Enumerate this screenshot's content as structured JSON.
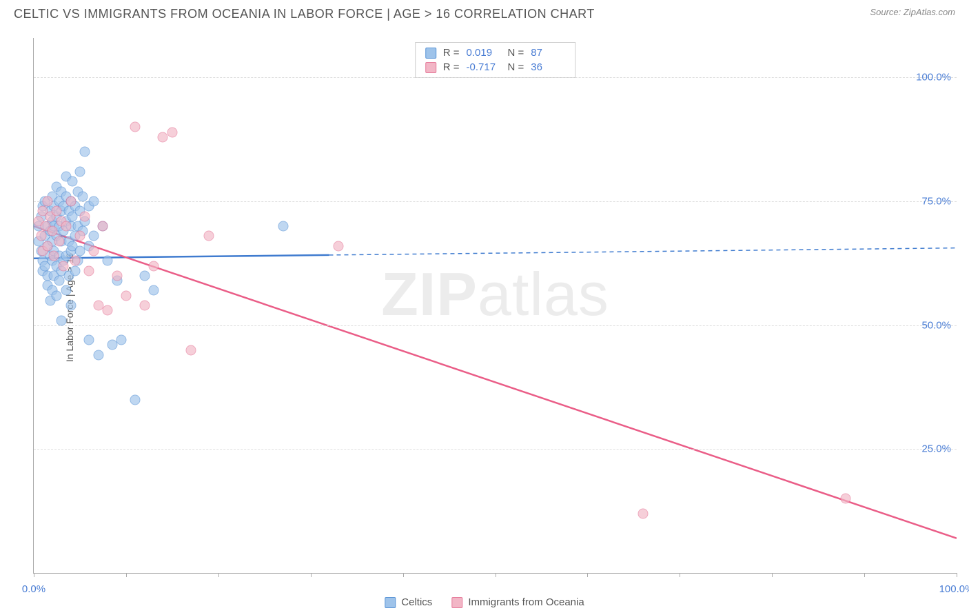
{
  "header": {
    "title": "CELTIC VS IMMIGRANTS FROM OCEANIA IN LABOR FORCE | AGE > 16 CORRELATION CHART",
    "source": "Source: ZipAtlas.com"
  },
  "watermark": {
    "bold": "ZIP",
    "light": "atlas"
  },
  "chart": {
    "type": "scatter",
    "y_axis_title": "In Labor Force | Age > 16",
    "xlim": [
      0,
      100
    ],
    "ylim": [
      0,
      108
    ],
    "x_ticks": [
      0,
      10,
      20,
      30,
      40,
      50,
      60,
      70,
      80,
      90,
      100
    ],
    "x_tick_labels": {
      "0": "0.0%",
      "100": "100.0%"
    },
    "y_gridlines": [
      25,
      50,
      75,
      100
    ],
    "y_tick_labels": {
      "25": "25.0%",
      "50": "50.0%",
      "75": "75.0%",
      "100": "100.0%"
    },
    "grid_color": "#dddddd",
    "axis_color": "#aaaaaa",
    "background_color": "#ffffff",
    "tick_label_color": "#4a7dd4",
    "tick_label_fontsize": 15,
    "axis_title_fontsize": 14,
    "marker_size": 15,
    "marker_opacity": 0.65,
    "series": [
      {
        "name": "Celtics",
        "color_fill": "#9ec3ea",
        "color_stroke": "#5a94d6",
        "R": "0.019",
        "N": "87",
        "trend": {
          "x1": 0,
          "y1": 63.5,
          "x2": 100,
          "y2": 65.6,
          "solid_until_x": 32,
          "color": "#3f7bcf"
        },
        "points": [
          [
            0.5,
            70
          ],
          [
            0.5,
            67
          ],
          [
            0.8,
            72
          ],
          [
            0.8,
            65
          ],
          [
            1,
            74
          ],
          [
            1,
            63
          ],
          [
            1,
            61
          ],
          [
            1.2,
            75
          ],
          [
            1.2,
            68
          ],
          [
            1.2,
            62
          ],
          [
            1.5,
            70
          ],
          [
            1.5,
            66
          ],
          [
            1.5,
            60
          ],
          [
            1.5,
            58
          ],
          [
            1.8,
            73
          ],
          [
            1.8,
            69
          ],
          [
            1.8,
            64
          ],
          [
            1.8,
            55
          ],
          [
            2,
            76
          ],
          [
            2,
            71
          ],
          [
            2,
            67
          ],
          [
            2,
            63
          ],
          [
            2,
            57
          ],
          [
            2.2,
            74
          ],
          [
            2.2,
            70
          ],
          [
            2.2,
            65
          ],
          [
            2.2,
            60
          ],
          [
            2.5,
            78
          ],
          [
            2.5,
            72
          ],
          [
            2.5,
            68
          ],
          [
            2.5,
            62
          ],
          [
            2.5,
            56
          ],
          [
            2.8,
            75
          ],
          [
            2.8,
            70
          ],
          [
            2.8,
            64
          ],
          [
            2.8,
            59
          ],
          [
            3,
            77
          ],
          [
            3,
            73
          ],
          [
            3,
            67
          ],
          [
            3,
            61
          ],
          [
            3,
            51
          ],
          [
            3.2,
            74
          ],
          [
            3.2,
            69
          ],
          [
            3.2,
            63
          ],
          [
            3.5,
            80
          ],
          [
            3.5,
            76
          ],
          [
            3.5,
            71
          ],
          [
            3.5,
            64
          ],
          [
            3.5,
            57
          ],
          [
            3.8,
            73
          ],
          [
            3.8,
            67
          ],
          [
            3.8,
            60
          ],
          [
            4,
            75
          ],
          [
            4,
            70
          ],
          [
            4,
            65
          ],
          [
            4,
            54
          ],
          [
            4.2,
            79
          ],
          [
            4.2,
            72
          ],
          [
            4.2,
            66
          ],
          [
            4.5,
            74
          ],
          [
            4.5,
            68
          ],
          [
            4.5,
            61
          ],
          [
            4.8,
            77
          ],
          [
            4.8,
            70
          ],
          [
            4.8,
            63
          ],
          [
            5,
            81
          ],
          [
            5,
            73
          ],
          [
            5,
            65
          ],
          [
            5.3,
            76
          ],
          [
            5.3,
            69
          ],
          [
            5.5,
            85
          ],
          [
            5.5,
            71
          ],
          [
            6,
            74
          ],
          [
            6,
            66
          ],
          [
            6,
            47
          ],
          [
            6.5,
            75
          ],
          [
            6.5,
            68
          ],
          [
            7,
            44
          ],
          [
            7.5,
            70
          ],
          [
            8,
            63
          ],
          [
            8.5,
            46
          ],
          [
            9,
            59
          ],
          [
            9.5,
            47
          ],
          [
            11,
            35
          ],
          [
            12,
            60
          ],
          [
            13,
            57
          ],
          [
            27,
            70
          ]
        ]
      },
      {
        "name": "Immigrants from Oceania",
        "color_fill": "#f2b6c6",
        "color_stroke": "#e67a9a",
        "R": "-0.717",
        "N": "36",
        "trend": {
          "x1": 0,
          "y1": 70,
          "x2": 100,
          "y2": 7,
          "solid_until_x": 100,
          "color": "#ea5d87"
        },
        "points": [
          [
            0.5,
            71
          ],
          [
            0.8,
            68
          ],
          [
            1,
            73
          ],
          [
            1,
            65
          ],
          [
            1.3,
            70
          ],
          [
            1.5,
            75
          ],
          [
            1.5,
            66
          ],
          [
            1.8,
            72
          ],
          [
            2,
            69
          ],
          [
            2.2,
            64
          ],
          [
            2.5,
            73
          ],
          [
            2.8,
            67
          ],
          [
            3,
            71
          ],
          [
            3.2,
            62
          ],
          [
            3.5,
            70
          ],
          [
            4,
            75
          ],
          [
            4.5,
            63
          ],
          [
            5,
            68
          ],
          [
            5.5,
            72
          ],
          [
            6,
            61
          ],
          [
            6.5,
            65
          ],
          [
            7,
            54
          ],
          [
            7.5,
            70
          ],
          [
            8,
            53
          ],
          [
            9,
            60
          ],
          [
            10,
            56
          ],
          [
            11,
            90
          ],
          [
            12,
            54
          ],
          [
            13,
            62
          ],
          [
            14,
            88
          ],
          [
            15,
            89
          ],
          [
            17,
            45
          ],
          [
            19,
            68
          ],
          [
            33,
            66
          ],
          [
            66,
            12
          ],
          [
            88,
            15
          ]
        ]
      }
    ]
  },
  "legend_top": {
    "border_color": "#cccccc",
    "rows": [
      {
        "swatch_fill": "#9ec3ea",
        "swatch_stroke": "#5a94d6",
        "r_label": "R =",
        "r_value": "0.019",
        "n_label": "N =",
        "n_value": "87"
      },
      {
        "swatch_fill": "#f2b6c6",
        "swatch_stroke": "#e67a9a",
        "r_label": "R =",
        "r_value": "-0.717",
        "n_label": "N =",
        "n_value": "36"
      }
    ]
  },
  "legend_bottom": {
    "items": [
      {
        "swatch_fill": "#9ec3ea",
        "swatch_stroke": "#5a94d6",
        "label": "Celtics"
      },
      {
        "swatch_fill": "#f2b6c6",
        "swatch_stroke": "#e67a9a",
        "label": "Immigrants from Oceania"
      }
    ]
  }
}
